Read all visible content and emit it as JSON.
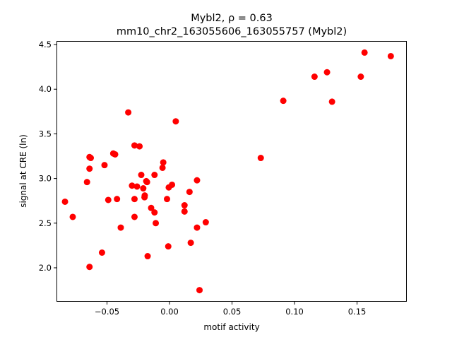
{
  "chart_data": {
    "type": "scatter",
    "title_line1": "Mybl2, ρ = 0.63",
    "title_line2": "mm10_chr2_163055606_163055757 (Mybl2)",
    "xlabel": "motif activity",
    "ylabel": "signal at CRE (ln)",
    "xlim": [
      -0.0904,
      0.1898
    ],
    "ylim": [
      1.62,
      4.54
    ],
    "xticks": [
      -0.05,
      0.0,
      0.05,
      0.1,
      0.15
    ],
    "xtick_labels": [
      "−0.05",
      "0.00",
      "0.05",
      "0.10",
      "0.15"
    ],
    "yticks": [
      2.0,
      2.5,
      3.0,
      3.5,
      4.0,
      4.5
    ],
    "ytick_labels": [
      "2.0",
      "2.5",
      "3.0",
      "3.5",
      "4.0",
      "4.5"
    ],
    "grid": false,
    "marker_color": "#ff0000",
    "points": [
      [
        -0.0774,
        2.57
      ],
      [
        -0.0836,
        2.74
      ],
      [
        -0.066,
        2.96
      ],
      [
        -0.064,
        3.24
      ],
      [
        -0.063,
        3.23
      ],
      [
        -0.064,
        3.11
      ],
      [
        -0.064,
        2.01
      ],
      [
        -0.054,
        2.17
      ],
      [
        -0.052,
        3.15
      ],
      [
        -0.049,
        2.76
      ],
      [
        -0.045,
        3.28
      ],
      [
        -0.0435,
        3.27
      ],
      [
        -0.042,
        2.77
      ],
      [
        -0.039,
        2.45
      ],
      [
        -0.033,
        3.74
      ],
      [
        -0.03,
        2.92
      ],
      [
        -0.028,
        3.37
      ],
      [
        -0.028,
        2.77
      ],
      [
        -0.028,
        2.57
      ],
      [
        -0.026,
        2.91
      ],
      [
        -0.024,
        3.36
      ],
      [
        -0.0226,
        3.04
      ],
      [
        -0.021,
        2.89
      ],
      [
        -0.02,
        2.79
      ],
      [
        -0.0198,
        2.81
      ],
      [
        -0.018,
        2.96
      ],
      [
        -0.0186,
        2.97
      ],
      [
        -0.0175,
        2.13
      ],
      [
        -0.0147,
        2.67
      ],
      [
        -0.012,
        3.04
      ],
      [
        -0.012,
        2.62
      ],
      [
        -0.011,
        2.5
      ],
      [
        -0.005,
        3.18
      ],
      [
        -0.0056,
        3.12
      ],
      [
        -0.002,
        2.77
      ],
      [
        -0.001,
        2.24
      ],
      [
        -0.0006,
        2.9
      ],
      [
        0.002,
        2.93
      ],
      [
        0.005,
        3.64
      ],
      [
        0.012,
        2.63
      ],
      [
        0.012,
        2.7
      ],
      [
        0.016,
        2.85
      ],
      [
        0.017,
        2.28
      ],
      [
        0.022,
        2.98
      ],
      [
        0.022,
        2.45
      ],
      [
        0.024,
        1.75
      ],
      [
        0.029,
        2.51
      ],
      [
        0.073,
        3.23
      ],
      [
        0.091,
        3.87
      ],
      [
        0.116,
        4.14
      ],
      [
        0.126,
        4.19
      ],
      [
        0.13,
        3.86
      ],
      [
        0.153,
        4.14
      ],
      [
        0.156,
        4.41
      ],
      [
        0.177,
        4.37
      ]
    ]
  }
}
